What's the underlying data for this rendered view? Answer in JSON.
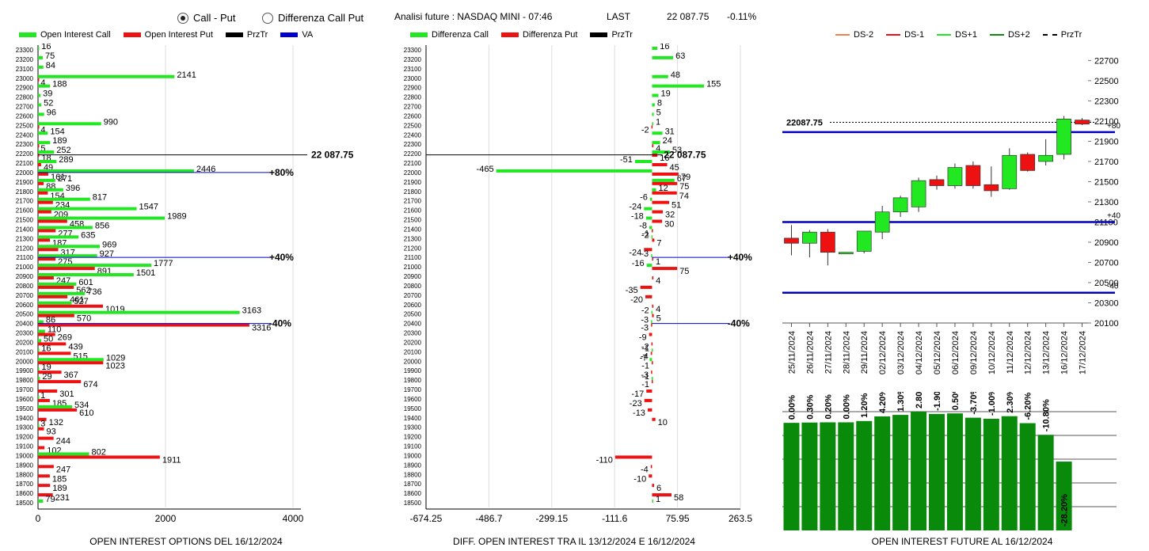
{
  "header": {
    "radio_call_put": "Call - Put",
    "radio_diff": "Differenza Call Put",
    "title": "Analisi future : NASDAQ MINI - 07:46",
    "last_label": "LAST",
    "last_value": "22 087.75",
    "change": "-0.11%"
  },
  "legend_left": [
    {
      "label": "Open Interest Call",
      "color": "#22e822",
      "kind": "bar"
    },
    {
      "label": "Open Interest Put",
      "color": "#ee1111",
      "kind": "bar"
    },
    {
      "label": "PrzTr",
      "color": "#000000",
      "kind": "bar"
    },
    {
      "label": "VA",
      "color": "#0000cc",
      "kind": "bar"
    }
  ],
  "legend_mid": [
    {
      "label": "Differenza Call",
      "color": "#22e822",
      "kind": "bar"
    },
    {
      "label": "Differenza Put",
      "color": "#ee1111",
      "kind": "bar"
    },
    {
      "label": "PrzTr",
      "color": "#000000",
      "kind": "bar"
    }
  ],
  "legend_right": [
    {
      "label": "DS-2",
      "color": "#f08050",
      "kind": "line"
    },
    {
      "label": "DS-1",
      "color": "#ee1111",
      "kind": "line"
    },
    {
      "label": "DS+1",
      "color": "#22e822",
      "kind": "line"
    },
    {
      "label": "DS+2",
      "color": "#118811",
      "kind": "line"
    },
    {
      "label": "PrzTr",
      "color": "#000000",
      "kind": "dash"
    }
  ],
  "footers": {
    "left": "OPEN INTEREST OPTIONS DEL 16/12/2024",
    "mid": "DIFF. OPEN INTEREST TRA IL 13/12/2024 E 16/12/2024",
    "right": "OPEN INTEREST FUTURE AL 16/12/2024"
  },
  "chart_data": [
    {
      "type": "bar",
      "orientation": "horizontal",
      "title": "OPEN INTEREST OPTIONS DEL 16/12/2024",
      "categories": [
        23300,
        23200,
        23100,
        23000,
        22900,
        22800,
        22700,
        22600,
        22500,
        22400,
        22300,
        22200,
        22100,
        22000,
        21900,
        21800,
        21700,
        21600,
        21500,
        21400,
        21300,
        21200,
        21100,
        21000,
        20900,
        20800,
        20700,
        20600,
        20500,
        20400,
        20300,
        20200,
        20100,
        20000,
        19900,
        19800,
        19700,
        19600,
        19500,
        19400,
        19300,
        19200,
        19100,
        19000,
        18900,
        18800,
        18700,
        18600,
        18500
      ],
      "series": [
        {
          "name": "Open Interest Call",
          "color": "#22e822",
          "values": [
            16,
            75,
            84,
            2141,
            188,
            39,
            52,
            96,
            990,
            154,
            189,
            252,
            289,
            2446,
            271,
            396,
            817,
            1547,
            1989,
            856,
            635,
            969,
            927,
            1777,
            1501,
            601,
            736,
            527,
            3163,
            86,
            110,
            50,
            16,
            1029,
            19,
            29,
            0,
            1,
            534,
            0,
            3,
            0,
            0,
            802,
            0,
            0,
            0,
            0,
            79
          ]
        },
        {
          "name": "Open Interest Put",
          "color": "#ee1111",
          "values": [
            0,
            0,
            0,
            4,
            0,
            0,
            0,
            0,
            4,
            0,
            5,
            18,
            49,
            161,
            88,
            154,
            234,
            209,
            458,
            277,
            187,
            317,
            275,
            891,
            247,
            562,
            461,
            1019,
            570,
            3316,
            269,
            439,
            515,
            1023,
            367,
            674,
            301,
            185,
            610,
            132,
            93,
            244,
            102,
            1911,
            247,
            185,
            189,
            231,
            0
          ]
        }
      ],
      "xlim": [
        0,
        4000
      ],
      "xticks": [
        0,
        2000,
        4000
      ],
      "price_line": {
        "value": 22087.75,
        "label": "22 087.75"
      },
      "markers": [
        {
          "strike": 22000,
          "label": "+80%",
          "color": "#0000cc"
        },
        {
          "strike": 21100,
          "label": "+40%",
          "color": "#0000cc"
        },
        {
          "strike": 20400,
          "label": "-40%",
          "color": "#0000cc"
        }
      ]
    },
    {
      "type": "bar",
      "orientation": "horizontal",
      "title": "DIFF. OPEN INTEREST TRA IL 13/12/2024 E 16/12/2024",
      "categories": [
        23300,
        23200,
        23100,
        23000,
        22900,
        22800,
        22700,
        22600,
        22500,
        22400,
        22300,
        22200,
        22100,
        22000,
        21900,
        21800,
        21700,
        21600,
        21500,
        21400,
        21300,
        21200,
        21100,
        21000,
        20900,
        20800,
        20700,
        20600,
        20500,
        20400,
        20300,
        20200,
        20100,
        20000,
        19900,
        19800,
        19700,
        19600,
        19500,
        19400,
        19300,
        19200,
        19100,
        19000,
        18900,
        18800,
        18700,
        18600,
        18500
      ],
      "series": [
        {
          "name": "Differenza Call",
          "color": "#22e822",
          "values": [
            16,
            63,
            0,
            48,
            155,
            19,
            8,
            5,
            1,
            31,
            24,
            53,
            -51,
            -465,
            67,
            12,
            -6,
            -24,
            -18,
            -8,
            -2,
            0,
            -3,
            -16,
            0,
            0,
            0,
            0,
            -2,
            -3,
            0,
            0,
            -1,
            -7,
            0,
            -1,
            0,
            0,
            0,
            0,
            0,
            0,
            0,
            0,
            0,
            0,
            0,
            0,
            1
          ]
        },
        {
          "name": "Differenza Put",
          "color": "#ee1111",
          "values": [
            0,
            0,
            0,
            0,
            0,
            0,
            0,
            0,
            -2,
            0,
            4,
            16,
            45,
            79,
            75,
            74,
            51,
            32,
            30,
            -1,
            7,
            -24,
            1,
            75,
            4,
            -35,
            -20,
            4,
            5,
            -3,
            -9,
            -2,
            -4,
            -1,
            -3,
            -1,
            -17,
            -23,
            -13,
            10,
            0,
            0,
            0,
            -110,
            -4,
            -10,
            6,
            58,
            0
          ]
        }
      ],
      "xticks": [
        -674.25,
        -486.7,
        -299.15,
        -111.6,
        75.95,
        263.5
      ],
      "xlim": [
        -674.25,
        263.5
      ],
      "price_line": {
        "value": 22087.75,
        "label": "22 087.75"
      },
      "markers": [
        {
          "strike": 21100,
          "label": "+40%"
        },
        {
          "strike": 20400,
          "label": "-40%"
        }
      ]
    },
    {
      "type": "candlestick",
      "title": "",
      "dates": [
        "25/11/2024",
        "26/11/2024",
        "27/11/2024",
        "28/11/2024",
        "29/11/2024",
        "02/12/2024",
        "03/12/2024",
        "04/12/2024",
        "05/12/2024",
        "06/12/2024",
        "09/12/2024",
        "10/12/2024",
        "11/12/2024",
        "12/12/2024",
        "13/12/2024",
        "16/12/2024",
        "17/12/2024"
      ],
      "ohlc": [
        [
          20940,
          21070,
          20770,
          20890
        ],
        [
          20890,
          21020,
          20750,
          21000
        ],
        [
          21000,
          21030,
          20670,
          20800
        ],
        [
          20800,
          20800,
          20790,
          20800
        ],
        [
          20810,
          21010,
          20790,
          21010
        ],
        [
          21000,
          21260,
          20930,
          21200
        ],
        [
          21200,
          21360,
          21150,
          21340
        ],
        [
          21250,
          21540,
          21200,
          21510
        ],
        [
          21520,
          21560,
          21420,
          21460
        ],
        [
          21460,
          21680,
          21430,
          21640
        ],
        [
          21660,
          21700,
          21430,
          21460
        ],
        [
          21470,
          21650,
          21350,
          21410
        ],
        [
          21430,
          21830,
          21420,
          21760
        ],
        [
          21770,
          21790,
          21600,
          21610
        ],
        [
          21700,
          21920,
          21660,
          21760
        ],
        [
          21770,
          22150,
          21720,
          22120
        ],
        [
          22110,
          22130,
          22060,
          22070
        ]
      ],
      "ylim": [
        20100,
        22750
      ],
      "yticks": [
        20100,
        20300,
        20500,
        20700,
        20900,
        21100,
        21300,
        21500,
        21700,
        21900,
        22100,
        22300,
        22500,
        22700
      ],
      "price_line": {
        "value": 22087.75,
        "label": "22087.75"
      },
      "levels": [
        {
          "value": 21990,
          "label": "+80",
          "color": "#0000bb"
        },
        {
          "value": 21100,
          "label": "+40",
          "color": "#0000bb"
        },
        {
          "value": 20400,
          "label": "-40",
          "color": "#0000bb"
        }
      ]
    },
    {
      "type": "bar",
      "title": "OPEN INTEREST FUTURE AL 16/12/2024",
      "categories": [
        "25/11/2024",
        "26/11/2024",
        "27/11/2024",
        "28/11/2024",
        "29/11/2024",
        "02/12/2024",
        "03/12/2024",
        "04/12/2024",
        "05/12/2024",
        "06/12/2024",
        "09/12/2024",
        "10/12/2024",
        "11/12/2024",
        "12/12/2024",
        "13/12/2024",
        "16/12/2024",
        "17/12/2024"
      ],
      "values": [
        100,
        100.3,
        100.5,
        100.5,
        101.7,
        106,
        107.4,
        110.4,
        108.3,
        108.8,
        104.8,
        103.8,
        106.2,
        99.7,
        88.9,
        64,
        null
      ],
      "labels": [
        "0.00%",
        "0.30%",
        "0.20%",
        "0.00%",
        "1.20%",
        "4.20%",
        "1.30%",
        "2.80%",
        "-1.90%",
        "0.50%",
        "-3.70%",
        "-1.00%",
        "2.30%",
        "-6.20%",
        "-10.80%",
        "-28.20%",
        ""
      ]
    }
  ]
}
